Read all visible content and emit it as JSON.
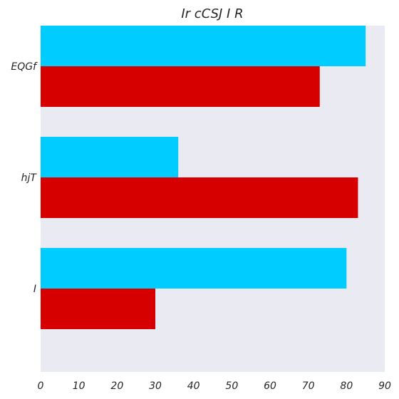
{
  "chart_data": {
    "type": "bar",
    "orientation": "horizontal",
    "title": "Ir cCSJ I R",
    "xlabel": "",
    "ylabel": "",
    "categories": [
      "EQGf",
      "hjT",
      "I"
    ],
    "series": [
      {
        "values": [
          85,
          36,
          80
        ],
        "color": "#00CCFF"
      },
      {
        "values": [
          73,
          83,
          30
        ],
        "color": "#D60000"
      }
    ],
    "xlim": [
      0,
      90
    ],
    "xticks": [
      0,
      10,
      20,
      30,
      40,
      50,
      60,
      70,
      80,
      90
    ],
    "grid": false,
    "legend": "none",
    "plot_background": "#EAEAF2"
  }
}
